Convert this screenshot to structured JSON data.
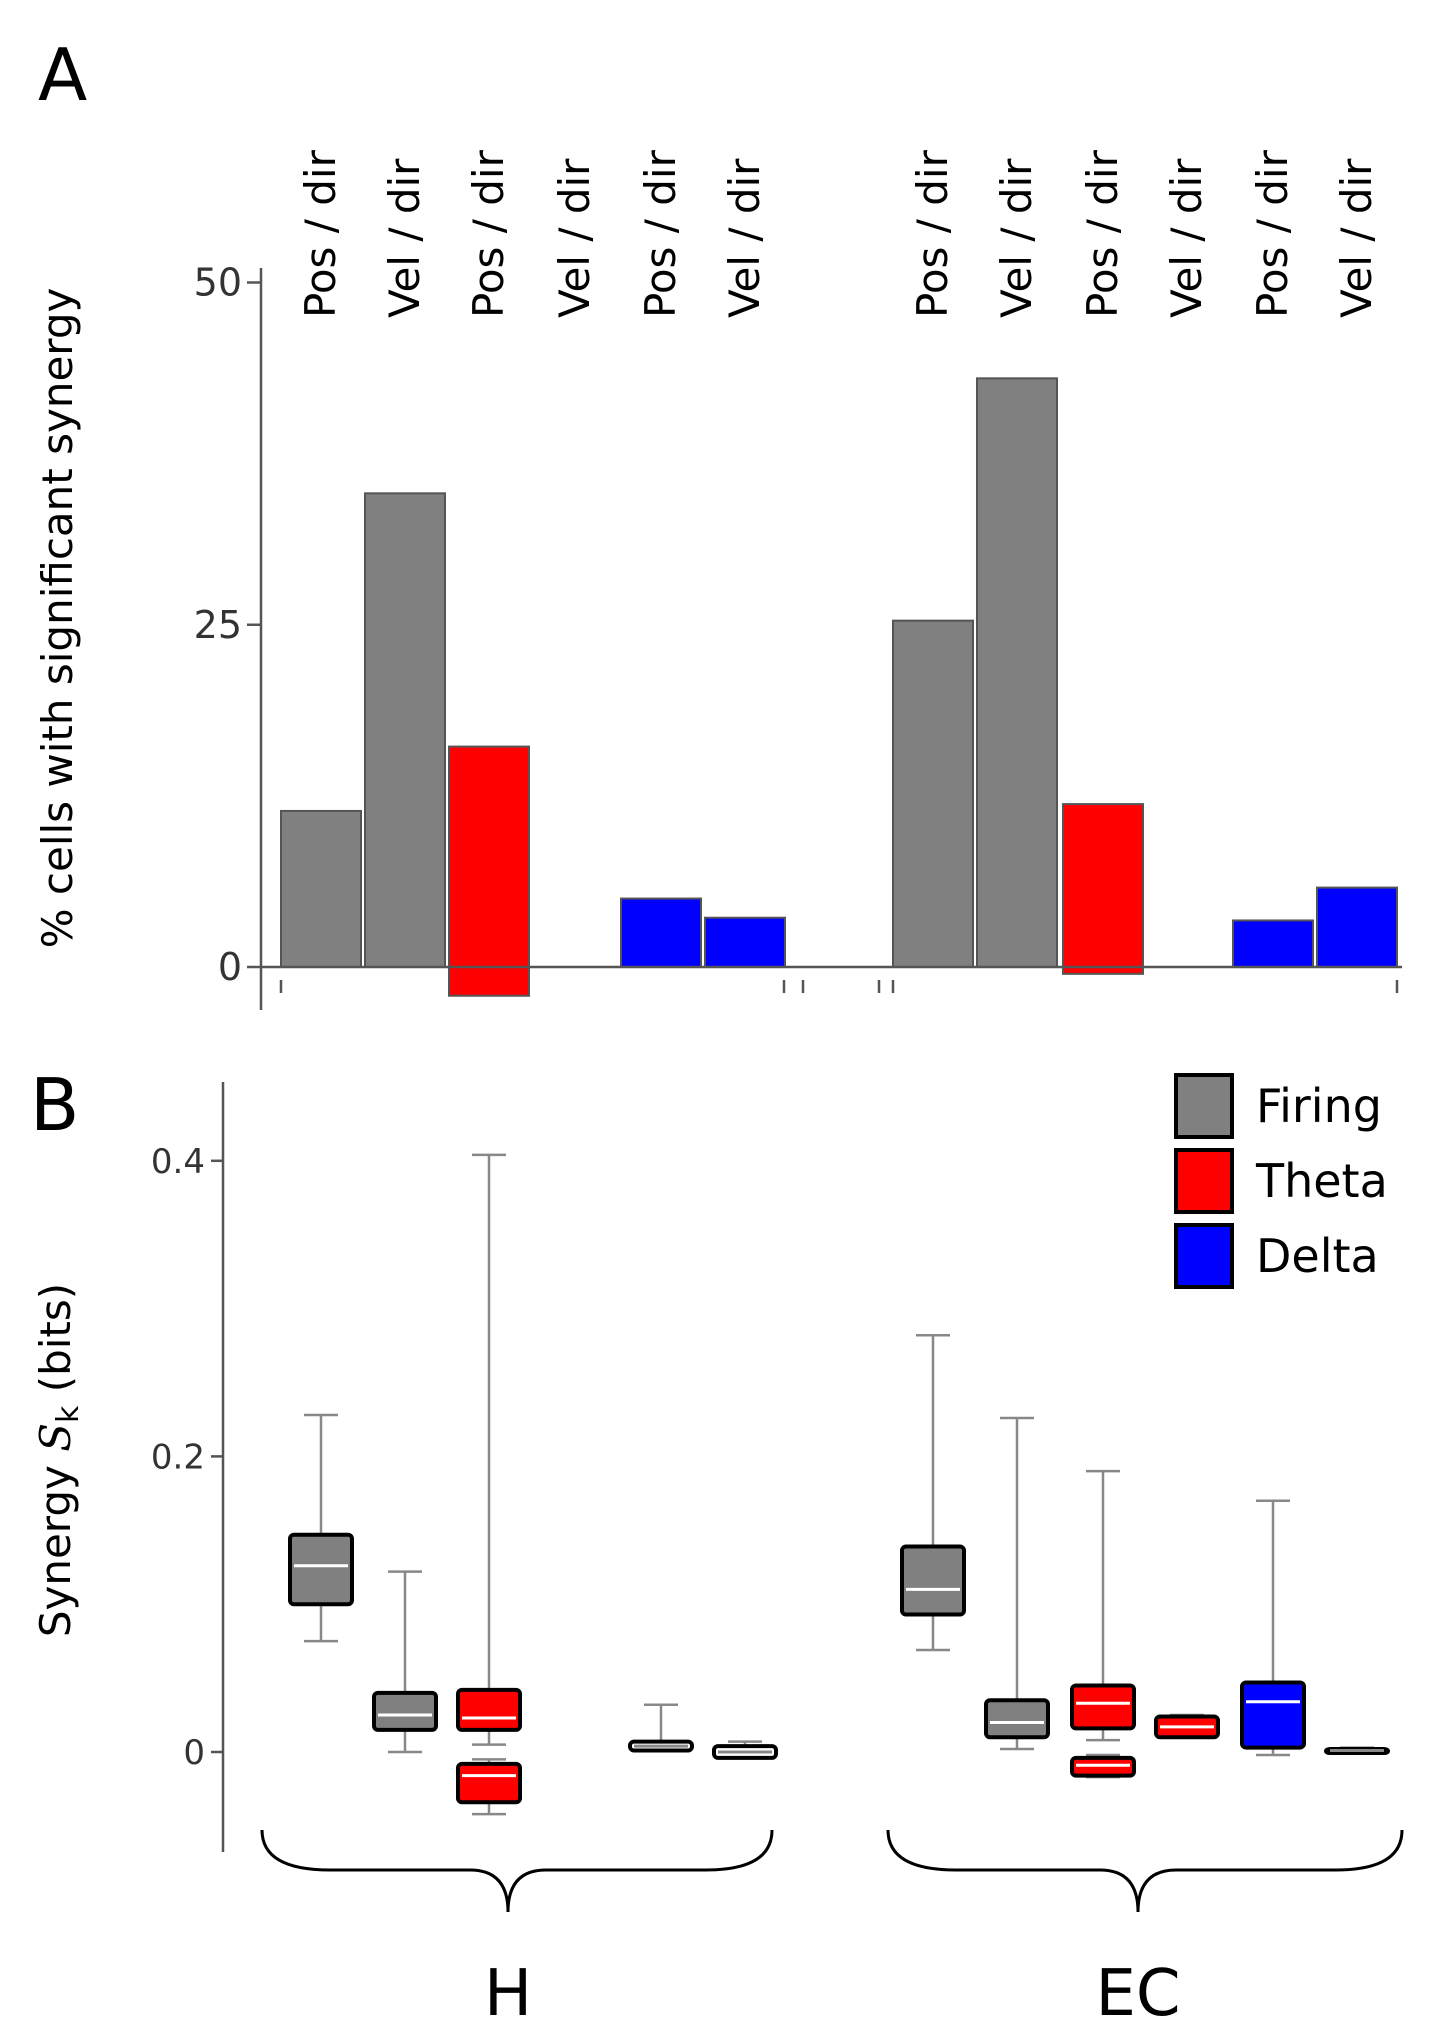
{
  "panels": {
    "a": "A",
    "b": "B"
  },
  "chart_data": [
    {
      "type": "bar",
      "panel": "A",
      "ylabel": "% cells with significant synergy",
      "ylim": [
        -2,
        50
      ],
      "yticks": [
        0,
        25,
        50
      ],
      "categories": [
        "Pos / dir",
        "Vel / dir",
        "Pos / dir",
        "Vel / dir",
        "Pos / dir",
        "Vel / dir",
        "Pos / dir",
        "Vel / dir",
        "Pos / dir",
        "Vel / dir",
        "Pos / dir",
        "Vel / dir"
      ],
      "bars": [
        {
          "category_index": 0,
          "value": 11.4,
          "baseline": 0,
          "series": "Firing",
          "color": "#808080"
        },
        {
          "category_index": 1,
          "value": 34.6,
          "baseline": 0,
          "series": "Firing",
          "color": "#808080"
        },
        {
          "category_index": 2,
          "value": 16.1,
          "baseline": -2.1,
          "series": "Theta",
          "color": "#ff0000"
        },
        {
          "category_index": 4,
          "value": 5.0,
          "baseline": 0,
          "series": "Delta",
          "color": "#0000ff"
        },
        {
          "category_index": 5,
          "value": 3.6,
          "baseline": 0,
          "series": "Delta",
          "color": "#0000ff"
        },
        {
          "category_index": 6,
          "value": 25.3,
          "baseline": 0,
          "series": "Firing",
          "color": "#808080"
        },
        {
          "category_index": 7,
          "value": 43.0,
          "baseline": 0,
          "series": "Firing",
          "color": "#808080"
        },
        {
          "category_index": 8,
          "value": 11.9,
          "baseline": -0.5,
          "series": "Theta",
          "color": "#ff0000"
        },
        {
          "category_index": 10,
          "value": 3.4,
          "baseline": 0,
          "series": "Delta",
          "color": "#0000ff"
        },
        {
          "category_index": 11,
          "value": 5.8,
          "baseline": 0,
          "series": "Delta",
          "color": "#0000ff"
        }
      ]
    },
    {
      "type": "box",
      "panel": "B",
      "ylabel_prefix": "Synergy ",
      "ylabel_symbol": "S",
      "ylabel_subscript": "k",
      "ylabel_suffix": " (bits)",
      "ylim": [
        -0.07,
        0.45
      ],
      "yticks": [
        "0",
        "0.2",
        "0.4"
      ],
      "ytick_values": [
        0,
        0.2,
        0.4
      ],
      "groups": [
        "H",
        "EC"
      ],
      "legend": [
        {
          "label": "Firing",
          "color": "#808080"
        },
        {
          "label": "Theta",
          "color": "#ff0000"
        },
        {
          "label": "Delta",
          "color": "#0000ff"
        }
      ],
      "boxes": [
        {
          "category_index": 0,
          "series": "Firing",
          "color": "#808080",
          "whisker_low": 0.075,
          "q1": 0.1,
          "median": 0.126,
          "q3": 0.147,
          "whisker_high": 0.228
        },
        {
          "category_index": 1,
          "series": "Firing",
          "color": "#808080",
          "whisker_low": 0.0,
          "q1": 0.015,
          "median": 0.025,
          "q3": 0.04,
          "whisker_high": 0.122
        },
        {
          "category_index": 2,
          "series": "Theta",
          "color": "#ff0000",
          "whisker_low": 0.005,
          "q1": 0.015,
          "median": 0.023,
          "q3": 0.042,
          "whisker_high": 0.404
        },
        {
          "category_index": 2,
          "series": "Theta",
          "color": "#ff0000",
          "whisker_low": -0.042,
          "q1": -0.034,
          "median": -0.016,
          "q3": -0.008,
          "whisker_high": -0.005
        },
        {
          "category_index": 4,
          "series": "Delta",
          "color": "#ffffff",
          "whisker_low": 0.001,
          "q1": 0.001,
          "median": 0.004,
          "q3": 0.007,
          "whisker_high": 0.032
        },
        {
          "category_index": 5,
          "series": "Delta",
          "color": "#ffffff",
          "whisker_low": -0.004,
          "q1": -0.004,
          "median": 0.0,
          "q3": 0.004,
          "whisker_high": 0.007
        },
        {
          "category_index": 6,
          "series": "Firing",
          "color": "#808080",
          "whisker_low": 0.069,
          "q1": 0.093,
          "median": 0.11,
          "q3": 0.139,
          "whisker_high": 0.282
        },
        {
          "category_index": 7,
          "series": "Firing",
          "color": "#808080",
          "whisker_low": 0.002,
          "q1": 0.01,
          "median": 0.02,
          "q3": 0.035,
          "whisker_high": 0.226
        },
        {
          "category_index": 8,
          "series": "Theta",
          "color": "#ff0000",
          "whisker_low": 0.008,
          "q1": 0.016,
          "median": 0.033,
          "q3": 0.045,
          "whisker_high": 0.19
        },
        {
          "category_index": 8,
          "series": "Theta",
          "color": "#ff0000",
          "whisker_low": -0.017,
          "q1": -0.016,
          "median": -0.009,
          "q3": -0.004,
          "whisker_high": -0.002
        },
        {
          "category_index": 9,
          "series": "Theta",
          "color": "#ff0000",
          "whisker_low": 0.01,
          "q1": 0.01,
          "median": 0.017,
          "q3": 0.024,
          "whisker_high": 0.025
        },
        {
          "category_index": 10,
          "series": "Delta",
          "color": "#0000ff",
          "whisker_low": -0.002,
          "q1": 0.003,
          "median": 0.034,
          "q3": 0.047,
          "whisker_high": 0.17
        },
        {
          "category_index": 11,
          "series": "Delta",
          "color": "#ffffff",
          "whisker_low": 0.0,
          "q1": 0.0,
          "median": 0.001,
          "q3": 0.002,
          "whisker_high": 0.003
        }
      ]
    }
  ]
}
